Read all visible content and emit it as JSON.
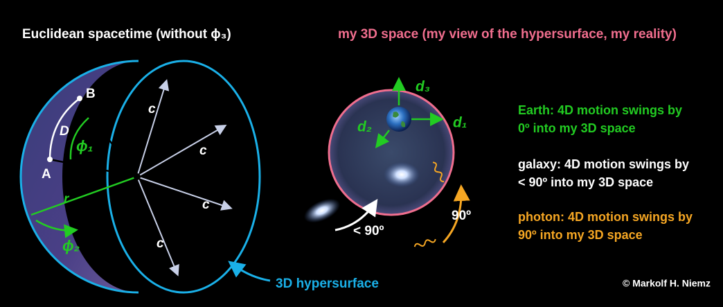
{
  "left": {
    "title": "Euclidean spacetime (without ϕ₃)",
    "point_b": "B",
    "point_a": "A",
    "arc_d": "D",
    "angle_1": "ϕ₁",
    "radius": "r",
    "angle_2": "ϕ₂",
    "c_labels": [
      "c",
      "c",
      "c",
      "c"
    ],
    "hypersurface": "3D hypersurface"
  },
  "right": {
    "title": "my 3D space (my view of the hypersurface, my reality)",
    "axis_3": "d₃",
    "axis_1": "d₁",
    "axis_2": "d₂",
    "galaxy_angle": "< 90º",
    "photon_angle": "90º"
  },
  "legend": {
    "earth": [
      "Earth: 4D motion swings by",
      "0º into my 3D space"
    ],
    "galaxy": [
      "galaxy: 4D motion swings by",
      "< 90º into my 3D space"
    ],
    "photon": [
      "photon: 4D motion swings by",
      "90º into my 3D space"
    ]
  },
  "credit": "© Markolf H. Niemz"
}
